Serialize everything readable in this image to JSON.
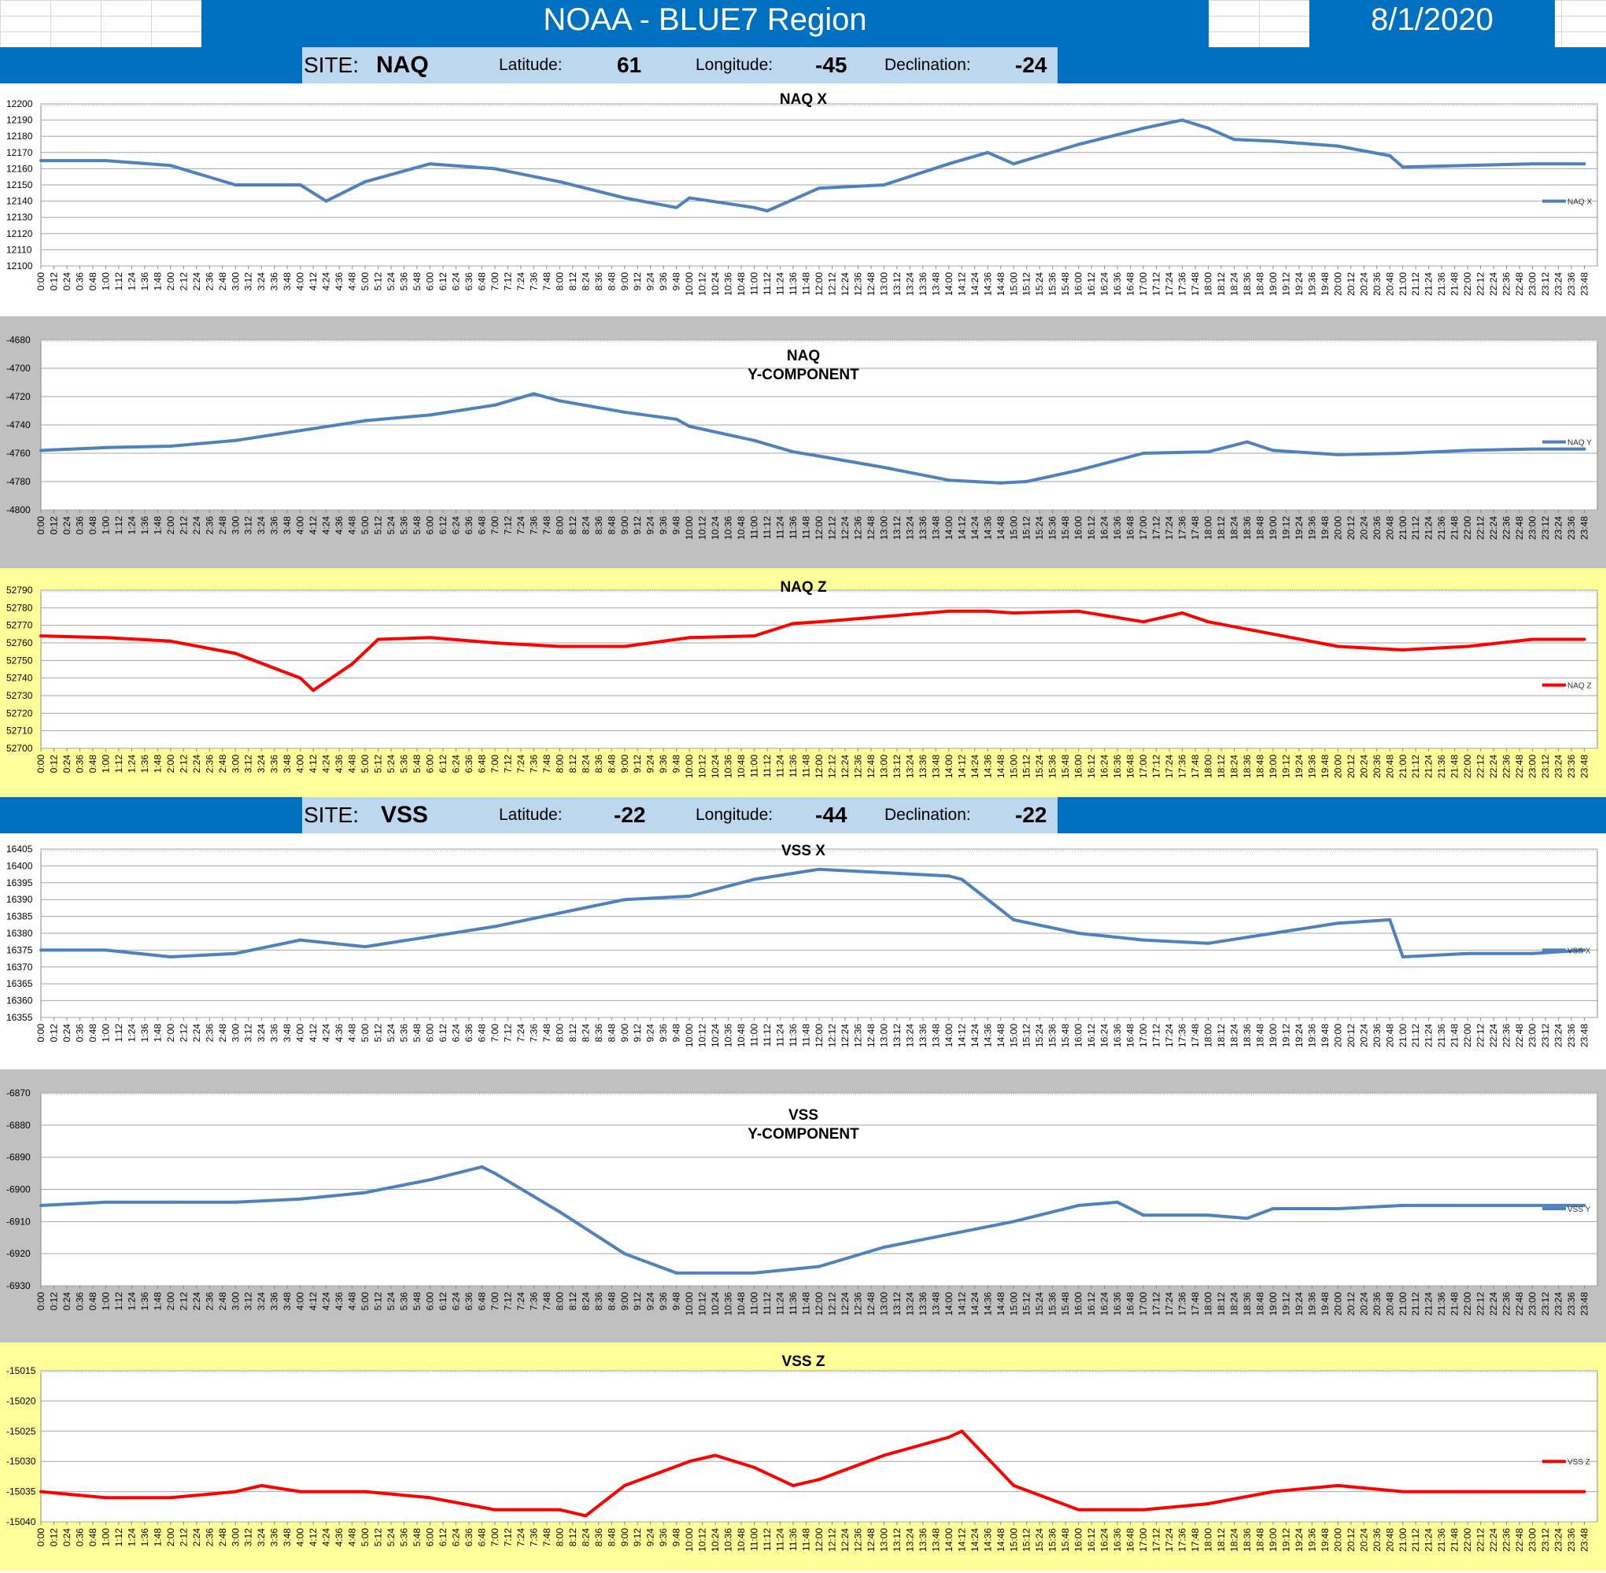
{
  "header": {
    "title": "NOAA - BLUE7 Region",
    "date": "8/1/2020"
  },
  "sites": [
    {
      "site_label": "SITE:",
      "site_code": "NAQ",
      "lat_label": "Latitude:",
      "lat_value": "61",
      "lon_label": "Longitude:",
      "lon_value": "-45",
      "dec_label": "Declination:",
      "dec_value": "-24"
    },
    {
      "site_label": "SITE:",
      "site_code": "VSS",
      "lat_label": "Latitude:",
      "lat_value": "-22",
      "lon_label": "Longitude:",
      "lon_value": "-44",
      "dec_label": "Declination:",
      "dec_value": "-22"
    }
  ],
  "colors": {
    "header_blue": "#0070c0",
    "site_box": "#bdd7ee",
    "series_blue": "#4f81bd",
    "series_red": "#ff0000",
    "panel_gray": "#c0c0c0",
    "panel_yellow": "#ffff99"
  },
  "chart_data": [
    {
      "type": "line",
      "title": [
        "NAQ X"
      ],
      "legend": "NAQ X",
      "color": "#4f81bd",
      "ylim": [
        12100,
        12200
      ],
      "yticks": [
        12100,
        12110,
        12120,
        12130,
        12140,
        12150,
        12160,
        12170,
        12180,
        12190,
        12200
      ],
      "x": [
        "0:00",
        "1:00",
        "2:00",
        "3:00",
        "4:00",
        "4:24",
        "5:00",
        "6:00",
        "7:00",
        "8:00",
        "9:00",
        "9:48",
        "10:00",
        "11:00",
        "11:12",
        "12:00",
        "13:00",
        "14:00",
        "14:36",
        "15:00",
        "16:00",
        "17:00",
        "17:36",
        "18:00",
        "18:24",
        "19:00",
        "20:00",
        "20:48",
        "21:00",
        "22:00",
        "23:00",
        "23:48"
      ],
      "values": [
        12165,
        12165,
        12162,
        12150,
        12150,
        12140,
        12152,
        12163,
        12160,
        12152,
        12142,
        12136,
        12142,
        12136,
        12134,
        12148,
        12150,
        12163,
        12170,
        12163,
        12175,
        12185,
        12190,
        12185,
        12178,
        12177,
        12174,
        12168,
        12161,
        12162,
        12163,
        12163
      ]
    },
    {
      "type": "line",
      "title": [
        "NAQ",
        "Y-COMPONENT"
      ],
      "legend": "NAQ Y",
      "color": "#4f81bd",
      "ylim": [
        -4800,
        -4680
      ],
      "yticks": [
        -4800,
        -4780,
        -4760,
        -4740,
        -4720,
        -4700,
        -4680
      ],
      "x": [
        "0:00",
        "1:00",
        "2:00",
        "3:00",
        "4:00",
        "5:00",
        "6:00",
        "7:00",
        "7:36",
        "8:00",
        "9:00",
        "9:48",
        "10:00",
        "11:00",
        "11:36",
        "12:00",
        "13:00",
        "14:00",
        "14:48",
        "15:12",
        "16:00",
        "17:00",
        "18:00",
        "18:36",
        "19:00",
        "20:00",
        "21:00",
        "22:00",
        "23:00",
        "23:48"
      ],
      "values": [
        -4758,
        -4756,
        -4755,
        -4751,
        -4744,
        -4737,
        -4733,
        -4726,
        -4718,
        -4723,
        -4731,
        -4736,
        -4741,
        -4751,
        -4759,
        -4762,
        -4770,
        -4779,
        -4781,
        -4780,
        -4772,
        -4760,
        -4759,
        -4752,
        -4758,
        -4761,
        -4760,
        -4758,
        -4757,
        -4757
      ]
    },
    {
      "type": "line",
      "title": [
        "NAQ Z"
      ],
      "legend": "NAQ Z",
      "color": "#ff0000",
      "ylim": [
        52700,
        52790
      ],
      "yticks": [
        52700,
        52710,
        52720,
        52730,
        52740,
        52750,
        52760,
        52770,
        52780,
        52790
      ],
      "x": [
        "0:00",
        "1:00",
        "2:00",
        "3:00",
        "4:00",
        "4:12",
        "4:48",
        "5:12",
        "6:00",
        "7:00",
        "8:00",
        "9:00",
        "10:00",
        "11:00",
        "11:36",
        "12:00",
        "13:00",
        "14:00",
        "14:36",
        "15:00",
        "16:00",
        "17:00",
        "17:36",
        "18:00",
        "19:00",
        "20:00",
        "21:00",
        "22:00",
        "23:00",
        "23:48"
      ],
      "values": [
        52764,
        52763,
        52761,
        52754,
        52740,
        52733,
        52748,
        52762,
        52763,
        52760,
        52758,
        52758,
        52763,
        52764,
        52771,
        52772,
        52775,
        52778,
        52778,
        52777,
        52778,
        52772,
        52777,
        52772,
        52765,
        52758,
        52756,
        52758,
        52762,
        52762
      ]
    },
    {
      "type": "line",
      "title": [
        "VSS X"
      ],
      "legend": "VSS X",
      "color": "#4f81bd",
      "ylim": [
        16355,
        16405
      ],
      "yticks": [
        16355,
        16360,
        16365,
        16370,
        16375,
        16380,
        16385,
        16390,
        16395,
        16400,
        16405
      ],
      "x": [
        "0:00",
        "1:00",
        "2:00",
        "3:00",
        "4:00",
        "5:00",
        "6:00",
        "7:00",
        "8:00",
        "9:00",
        "10:00",
        "11:00",
        "12:00",
        "13:00",
        "14:00",
        "14:12",
        "15:00",
        "16:00",
        "17:00",
        "18:00",
        "19:00",
        "20:00",
        "20:48",
        "21:00",
        "22:00",
        "23:00",
        "23:48"
      ],
      "values": [
        16375,
        16375,
        16373,
        16374,
        16378,
        16376,
        16379,
        16382,
        16386,
        16390,
        16391,
        16396,
        16399,
        16398,
        16397,
        16396,
        16384,
        16380,
        16378,
        16377,
        16380,
        16383,
        16384,
        16373,
        16374,
        16374,
        16375
      ]
    },
    {
      "type": "line",
      "title": [
        "VSS",
        "Y-COMPONENT"
      ],
      "legend": "VSS Y",
      "color": "#4f81bd",
      "ylim": [
        -6930,
        -6870
      ],
      "yticks": [
        -6930,
        -6920,
        -6910,
        -6900,
        -6890,
        -6880,
        -6870
      ],
      "x": [
        "0:00",
        "1:00",
        "2:00",
        "3:00",
        "4:00",
        "5:00",
        "6:00",
        "6:48",
        "7:00",
        "8:00",
        "9:00",
        "9:48",
        "10:00",
        "11:00",
        "12:00",
        "13:00",
        "14:00",
        "15:00",
        "16:00",
        "16:36",
        "17:00",
        "18:00",
        "18:36",
        "19:00",
        "20:00",
        "21:00",
        "22:00",
        "23:00",
        "23:48"
      ],
      "values": [
        -6905,
        -6904,
        -6904,
        -6904,
        -6903,
        -6901,
        -6897,
        -6893,
        -6895,
        -6907,
        -6920,
        -6926,
        -6926,
        -6926,
        -6924,
        -6918,
        -6914,
        -6910,
        -6905,
        -6904,
        -6908,
        -6908,
        -6909,
        -6906,
        -6906,
        -6905,
        -6905,
        -6905,
        -6905
      ]
    },
    {
      "type": "line",
      "title": [
        "VSS Z"
      ],
      "legend": "VSS Z",
      "color": "#ff0000",
      "ylim": [
        -15040,
        -15015
      ],
      "yticks": [
        -15040,
        -15035,
        -15030,
        -15025,
        -15020,
        -15015
      ],
      "x": [
        "0:00",
        "1:00",
        "2:00",
        "3:00",
        "3:24",
        "4:00",
        "5:00",
        "6:00",
        "7:00",
        "8:00",
        "8:24",
        "9:00",
        "10:00",
        "10:24",
        "11:00",
        "11:36",
        "12:00",
        "13:00",
        "14:00",
        "14:12",
        "15:00",
        "16:00",
        "17:00",
        "18:00",
        "19:00",
        "20:00",
        "21:00",
        "22:00",
        "23:00",
        "23:48"
      ],
      "values": [
        -15035,
        -15036,
        -15036,
        -15035,
        -15034,
        -15035,
        -15035,
        -15036,
        -15038,
        -15038,
        -15039,
        -15034,
        -15030,
        -15029,
        -15031,
        -15034,
        -15033,
        -15029,
        -15026,
        -15025,
        -15034,
        -15038,
        -15038,
        -15037,
        -15035,
        -15034,
        -15035,
        -15035,
        -15035,
        -15035
      ]
    }
  ]
}
